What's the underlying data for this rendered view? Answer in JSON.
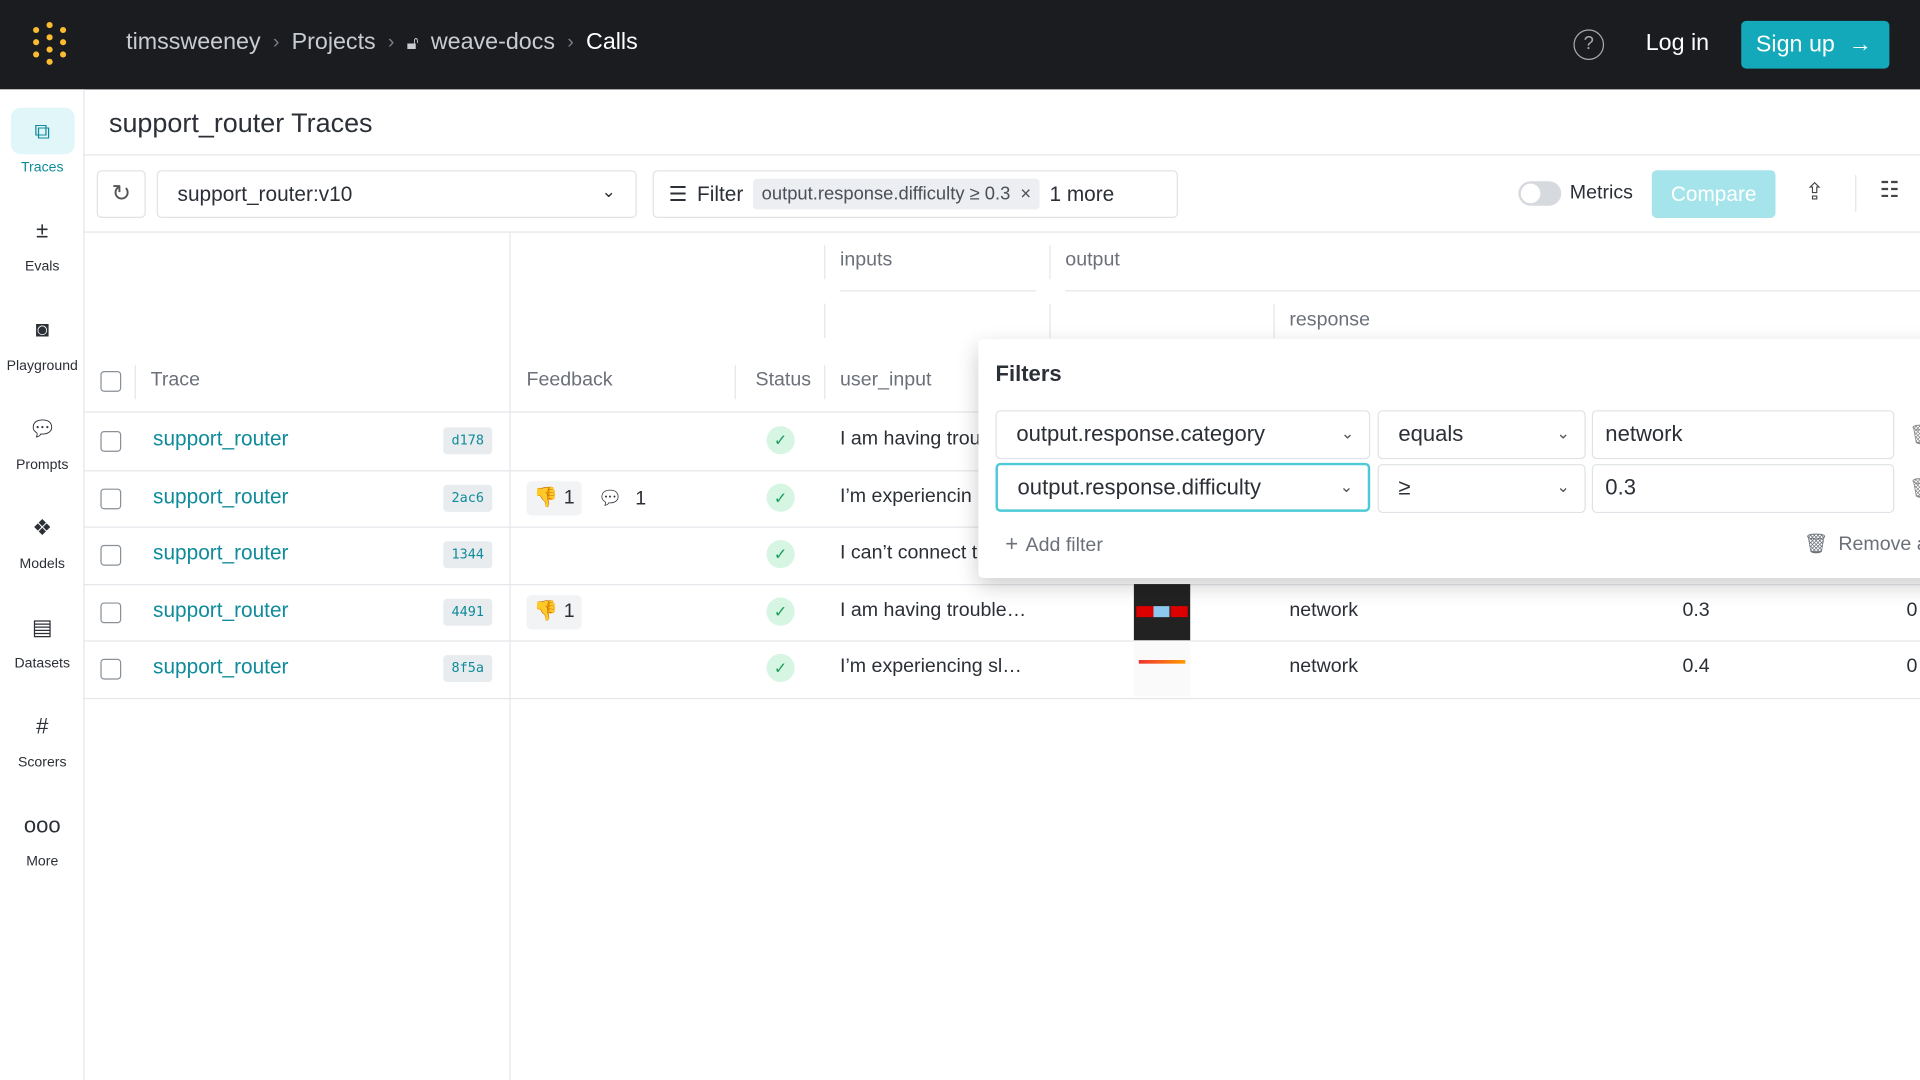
{
  "header": {
    "breadcrumbs": [
      "timssweeney",
      "Projects",
      "weave-docs",
      "Calls"
    ],
    "help_icon": "question-circle-icon",
    "login": "Log in",
    "signup": "Sign up"
  },
  "sidebar": {
    "items": [
      {
        "label": "Traces",
        "icon": "traces-icon",
        "active": true
      },
      {
        "label": "Evals",
        "icon": "evals-icon"
      },
      {
        "label": "Playground",
        "icon": "robot-icon"
      },
      {
        "label": "Prompts",
        "icon": "chat-icon"
      },
      {
        "label": "Models",
        "icon": "models-icon"
      },
      {
        "label": "Datasets",
        "icon": "table-icon"
      },
      {
        "label": "Scorers",
        "icon": "hash-icon"
      },
      {
        "label": "More",
        "icon": "more-icon"
      }
    ]
  },
  "page": {
    "title": "support_router Traces"
  },
  "toolbar": {
    "op_select": "support_router:v10",
    "filter_label": "Filter",
    "filter_chip": "output.response.difficulty ≥ 0.3",
    "more": "1 more",
    "metrics": "Metrics",
    "compare": "Compare"
  },
  "table": {
    "groups": {
      "inputs": "inputs",
      "output": "output",
      "response": "response"
    },
    "columns": {
      "trace": "Trace",
      "feedback": "Feedback",
      "status": "Status",
      "user_input": "user_input"
    },
    "rows": [
      {
        "trace": "support_router",
        "id": "d178",
        "feedback": null,
        "user_input": "I am having trou",
        "category": "",
        "difficulty": "",
        "extra": ""
      },
      {
        "trace": "support_router",
        "id": "2ac6",
        "thumbs_down": "1",
        "comments": "1",
        "user_input": "I’m experiencin",
        "category": "",
        "difficulty": "",
        "extra": ""
      },
      {
        "trace": "support_router",
        "id": "1344",
        "user_input": "I can’t connect t",
        "category": "",
        "difficulty": "",
        "extra": ""
      },
      {
        "trace": "support_router",
        "id": "4491",
        "thumbs_down": "1",
        "user_input": "I am having trouble…",
        "category": "network",
        "difficulty": "0.3",
        "extra": "0"
      },
      {
        "trace": "support_router",
        "id": "8f5a",
        "user_input": "I’m experiencing sl…",
        "category": "network",
        "difficulty": "0.4",
        "extra": "0"
      }
    ]
  },
  "filters_popup": {
    "title": "Filters",
    "filters": [
      {
        "field": "output.response.category",
        "op": "equals",
        "value": "network"
      },
      {
        "field": "output.response.difficulty",
        "op": "≥",
        "value": "0.3"
      }
    ],
    "add": "Add filter",
    "remove": "Remove a"
  },
  "colors": {
    "accent": "#13a9ba",
    "link": "#0f8b9b",
    "topbar": "#1a1c1f",
    "logo": "#fcbc32"
  }
}
